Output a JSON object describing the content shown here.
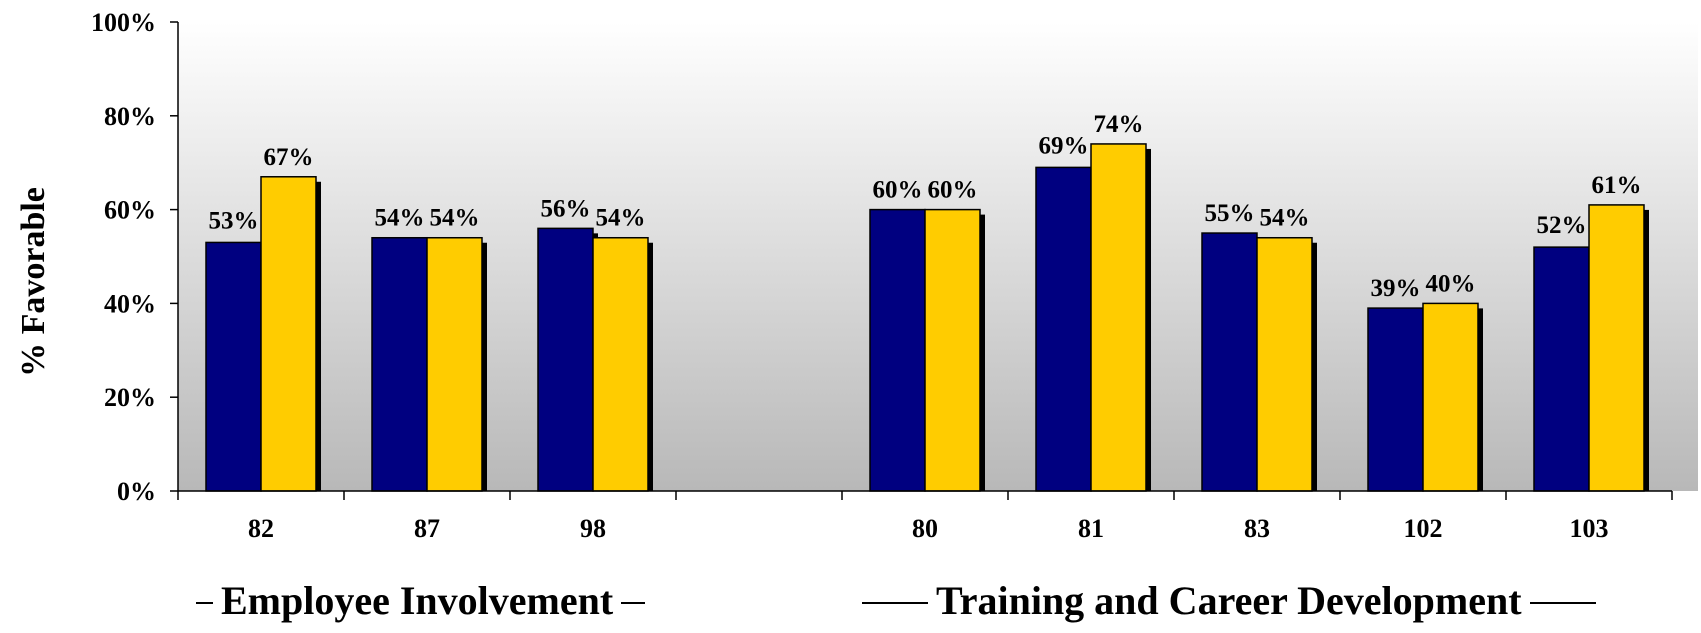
{
  "chart_data": {
    "type": "bar",
    "ylabel": "% Favorable",
    "ylim": [
      0,
      100
    ],
    "yticks": [
      "0%",
      "20%",
      "40%",
      "60%",
      "80%",
      "100%"
    ],
    "grid": false,
    "legend": "none",
    "categories": [
      "82",
      "87",
      "98",
      "80",
      "81",
      "83",
      "102",
      "103"
    ],
    "series": [
      {
        "color": "#000080",
        "values": [
          53,
          54,
          56,
          60,
          69,
          55,
          39,
          52
        ]
      },
      {
        "color": "#FFCC00",
        "values": [
          67,
          54,
          54,
          60,
          74,
          54,
          40,
          61
        ]
      }
    ],
    "data_labels": [
      [
        "53%",
        "54%",
        "56%",
        "60%",
        "69%",
        "55%",
        "39%",
        "52%"
      ],
      [
        "67%",
        "54%",
        "54%",
        "60%",
        "74%",
        "54%",
        "40%",
        "61%"
      ]
    ],
    "groups": [
      {
        "label": "Employee Involvement",
        "categories": [
          "82",
          "87",
          "98"
        ]
      },
      {
        "label": "Training and Career Development",
        "categories": [
          "80",
          "81",
          "83",
          "102",
          "103"
        ]
      }
    ]
  }
}
